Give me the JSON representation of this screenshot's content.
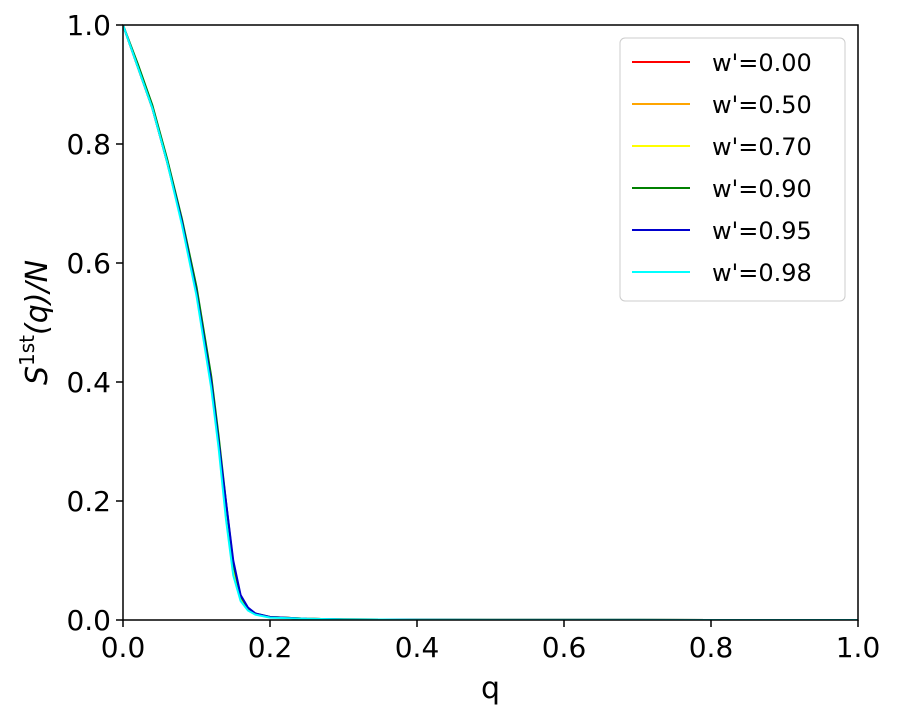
{
  "chart_data": {
    "type": "line",
    "xlabel": "q",
    "ylabel": "S^{1st}(q)/N",
    "ylabel_parts": {
      "base": "S",
      "superscript": "1st",
      "rest": "(q)/N"
    },
    "xlim": [
      0.0,
      1.0
    ],
    "ylim": [
      0.0,
      1.0
    ],
    "x_ticks": [
      "0.0",
      "0.2",
      "0.4",
      "0.6",
      "0.8",
      "1.0"
    ],
    "y_ticks": [
      "0.0",
      "0.2",
      "0.4",
      "0.6",
      "0.8",
      "1.0"
    ],
    "grid": false,
    "legend_position": "top-right",
    "x": [
      0.0,
      0.02,
      0.04,
      0.06,
      0.08,
      0.1,
      0.12,
      0.13,
      0.14,
      0.15,
      0.16,
      0.17,
      0.18,
      0.2,
      0.25,
      0.3,
      0.4,
      0.5,
      0.6,
      0.8,
      1.0
    ],
    "series": [
      {
        "name": "w'=0.00",
        "color": "#ff0000",
        "values": [
          1.0,
          0.93,
          0.86,
          0.77,
          0.67,
          0.55,
          0.4,
          0.3,
          0.18,
          0.08,
          0.035,
          0.018,
          0.01,
          0.005,
          0.002,
          0.001,
          0.0005,
          0.0003,
          0.0002,
          0.0001,
          0.0001
        ]
      },
      {
        "name": "w'=0.50",
        "color": "#ffa500",
        "values": [
          1.0,
          0.93,
          0.86,
          0.77,
          0.67,
          0.55,
          0.4,
          0.3,
          0.185,
          0.085,
          0.037,
          0.019,
          0.01,
          0.005,
          0.002,
          0.001,
          0.0005,
          0.0003,
          0.0002,
          0.0001,
          0.0001
        ]
      },
      {
        "name": "w'=0.70",
        "color": "#ffff00",
        "values": [
          1.0,
          0.93,
          0.86,
          0.77,
          0.67,
          0.55,
          0.4,
          0.3,
          0.19,
          0.09,
          0.038,
          0.019,
          0.01,
          0.005,
          0.002,
          0.001,
          0.0005,
          0.0003,
          0.0002,
          0.0001,
          0.0001
        ]
      },
      {
        "name": "w'=0.90",
        "color": "#008000",
        "values": [
          1.0,
          0.935,
          0.865,
          0.775,
          0.675,
          0.56,
          0.41,
          0.31,
          0.2,
          0.095,
          0.04,
          0.02,
          0.011,
          0.005,
          0.002,
          0.001,
          0.0005,
          0.0003,
          0.0002,
          0.0001,
          0.0001
        ]
      },
      {
        "name": "w'=0.95",
        "color": "#0000cd",
        "values": [
          1.0,
          0.93,
          0.86,
          0.77,
          0.67,
          0.55,
          0.4,
          0.3,
          0.2,
          0.1,
          0.042,
          0.021,
          0.011,
          0.005,
          0.002,
          0.001,
          0.0005,
          0.0003,
          0.0002,
          0.0001,
          0.0001
        ]
      },
      {
        "name": "w'=0.98",
        "color": "#00ffff",
        "values": [
          1.0,
          0.93,
          0.86,
          0.77,
          0.665,
          0.545,
          0.39,
          0.29,
          0.17,
          0.075,
          0.032,
          0.016,
          0.009,
          0.004,
          0.002,
          0.001,
          0.0005,
          0.0003,
          0.0002,
          0.0001,
          0.0001
        ]
      }
    ]
  }
}
